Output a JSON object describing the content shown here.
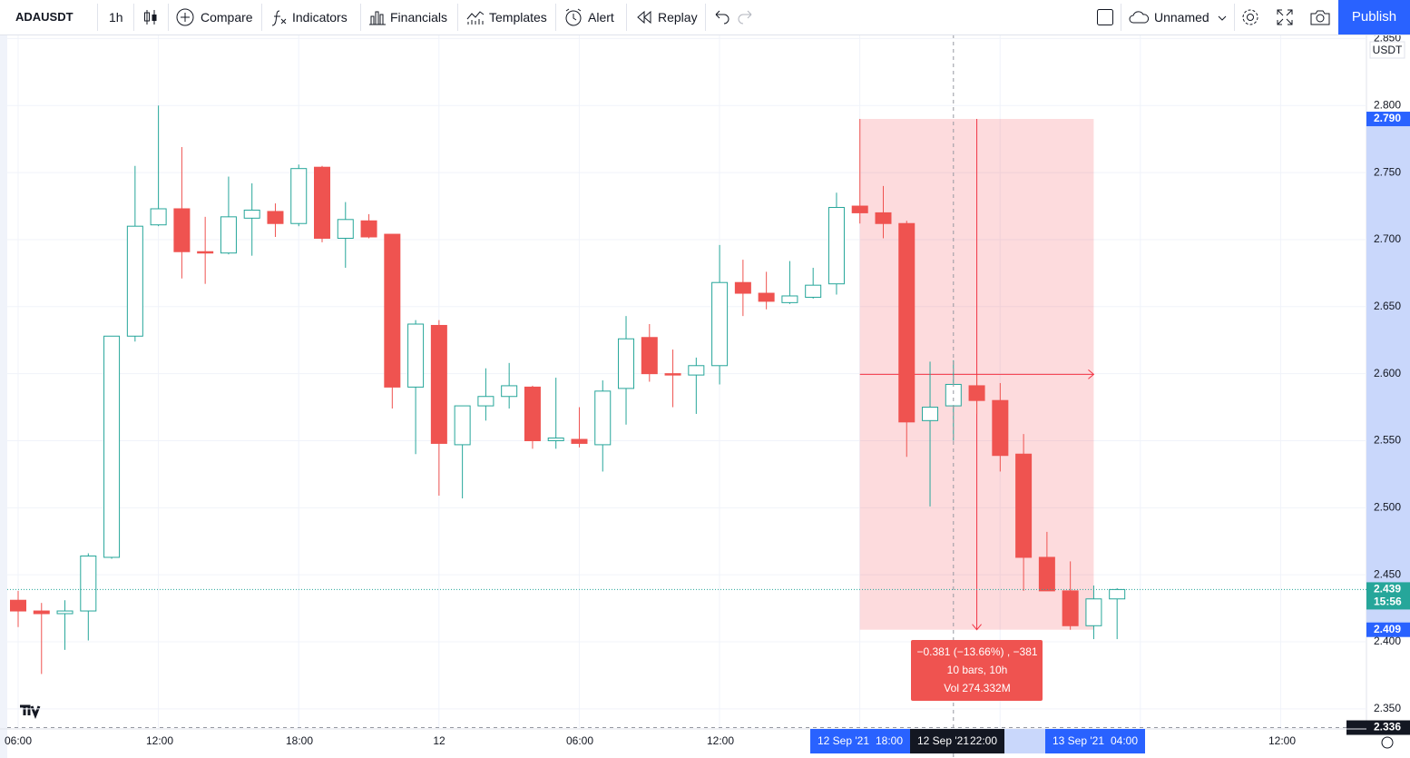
{
  "toolbar": {
    "symbol": "ADAUSDT",
    "interval": "1h",
    "compare": "Compare",
    "indicators": "Indicators",
    "financials": "Financials",
    "templates": "Templates",
    "alert": "Alert",
    "replay": "Replay",
    "layout_name": "Unnamed",
    "publish": "Publish"
  },
  "chart_data": {
    "type": "candlestick",
    "currency": "USDT",
    "up_color": "#26a69a",
    "down_color": "#ef5350",
    "open": [
      2.431,
      2.423,
      2.421,
      2.423,
      2.463,
      2.628,
      2.711,
      2.723,
      2.691,
      2.69,
      2.716,
      2.721,
      2.712,
      2.754,
      2.701,
      2.714,
      2.704,
      2.59,
      2.636,
      2.547,
      2.576,
      2.583,
      2.59,
      2.55,
      2.551,
      2.547,
      2.589,
      2.627,
      2.6,
      2.599,
      2.606,
      2.668,
      2.66,
      2.653,
      2.657,
      2.667,
      2.725,
      2.72,
      2.712,
      2.565,
      2.576,
      2.591,
      2.58,
      2.54,
      2.463,
      2.438,
      2.412,
      2.432
    ],
    "high": [
      2.438,
      2.429,
      2.431,
      2.466,
      2.628,
      2.755,
      2.8,
      2.769,
      2.717,
      2.747,
      2.742,
      2.727,
      2.756,
      2.755,
      2.728,
      2.719,
      2.704,
      2.64,
      2.64,
      2.576,
      2.604,
      2.608,
      2.591,
      2.597,
      2.575,
      2.595,
      2.643,
      2.637,
      2.618,
      2.612,
      2.696,
      2.685,
      2.676,
      2.684,
      2.679,
      2.735,
      2.79,
      2.74,
      2.714,
      2.609,
      2.61,
      2.599,
      2.593,
      2.555,
      2.482,
      2.46,
      2.442,
      2.44
    ],
    "low": [
      2.411,
      2.376,
      2.394,
      2.401,
      2.462,
      2.624,
      2.71,
      2.671,
      2.667,
      2.689,
      2.688,
      2.702,
      2.71,
      2.698,
      2.679,
      2.701,
      2.574,
      2.54,
      2.509,
      2.507,
      2.565,
      2.574,
      2.544,
      2.544,
      2.545,
      2.527,
      2.562,
      2.594,
      2.575,
      2.57,
      2.592,
      2.643,
      2.648,
      2.652,
      2.656,
      2.659,
      2.712,
      2.701,
      2.538,
      2.501,
      2.55,
      2.57,
      2.527,
      2.438,
      2.438,
      2.409,
      2.402,
      2.402
    ],
    "close": [
      2.423,
      2.421,
      2.423,
      2.464,
      2.628,
      2.71,
      2.723,
      2.691,
      2.69,
      2.717,
      2.722,
      2.712,
      2.753,
      2.701,
      2.715,
      2.702,
      2.59,
      2.637,
      2.548,
      2.576,
      2.583,
      2.591,
      2.55,
      2.552,
      2.548,
      2.587,
      2.626,
      2.6,
      2.599,
      2.606,
      2.668,
      2.66,
      2.654,
      2.658,
      2.666,
      2.724,
      2.72,
      2.712,
      2.564,
      2.575,
      2.592,
      2.58,
      2.539,
      2.463,
      2.438,
      2.412,
      2.432,
      2.439
    ],
    "ylim": [
      2.335,
      2.853
    ],
    "yticks": [
      {
        "value": 2.35,
        "label": "2.350"
      },
      {
        "value": 2.4,
        "label": "2.400"
      },
      {
        "value": 2.45,
        "label": "2.450"
      },
      {
        "value": 2.5,
        "label": "2.500"
      },
      {
        "value": 2.55,
        "label": "2.550"
      },
      {
        "value": 2.6,
        "label": "2.600"
      },
      {
        "value": 2.65,
        "label": "2.650"
      },
      {
        "value": 2.7,
        "label": "2.700"
      },
      {
        "value": 2.75,
        "label": "2.750"
      },
      {
        "value": 2.8,
        "label": "2.800"
      },
      {
        "value": 2.85,
        "label": "2.850"
      }
    ],
    "x_tick_labels": [
      "06:00",
      "12:00",
      "18:00",
      "12",
      "06:00",
      "12:00",
      "12:00"
    ],
    "last_price": {
      "value": 2.439,
      "label": "2.439",
      "countdown": "15:56"
    },
    "crosshair": {
      "value": 2.336,
      "label": "2.336",
      "time": [
        "12 Sep '21",
        "22:00"
      ]
    },
    "measure": {
      "top": {
        "value": 2.79,
        "label": "2.790"
      },
      "bottom": {
        "value": 2.409,
        "label": "2.409"
      },
      "start_time": [
        "12 Sep '21",
        "18:00"
      ],
      "end_time": [
        "13 Sep '21",
        "04:00"
      ],
      "lines": [
        "−0.381 (−13.66%) , −381",
        "10 bars, 10h",
        "Vol 274.332M"
      ]
    }
  }
}
